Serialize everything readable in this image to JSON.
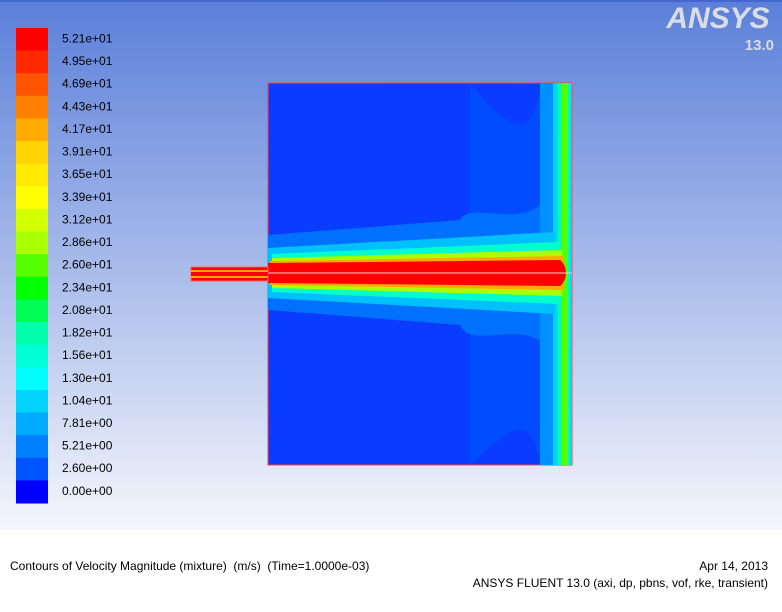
{
  "colorbar": {
    "labels": [
      "5.21e+01",
      "4.95e+01",
      "4.69e+01",
      "4.43e+01",
      "4.17e+01",
      "3.91e+01",
      "3.65e+01",
      "3.39e+01",
      "3.12e+01",
      "2.86e+01",
      "2.60e+01",
      "2.34e+01",
      "2.08e+01",
      "1.82e+01",
      "1.56e+01",
      "1.30e+01",
      "1.04e+01",
      "7.81e+00",
      "5.21e+00",
      "2.60e+00",
      "0.00e+00"
    ],
    "colors": [
      "#ff0000",
      "#ff2a00",
      "#ff5500",
      "#ff8000",
      "#ffaa00",
      "#ffd400",
      "#ffea00",
      "#ffff00",
      "#d4ff00",
      "#aaff00",
      "#55ff00",
      "#00ff00",
      "#00ff55",
      "#00ffaa",
      "#00ffd4",
      "#00ffff",
      "#00d4ff",
      "#00aaff",
      "#0080ff",
      "#0055ff",
      "#0000ff"
    ]
  },
  "logo": {
    "brand": "ANSYS",
    "version": "13.0"
  },
  "footer": {
    "title": "Contours of Velocity Magnitude (mixture)  (m/s)  (Time=1.0000e-03)",
    "date": "Apr 14, 2013",
    "solver": "ANSYS FLUENT 13.0 (axi, dp, pbns, vof, rke, transient)"
  }
}
